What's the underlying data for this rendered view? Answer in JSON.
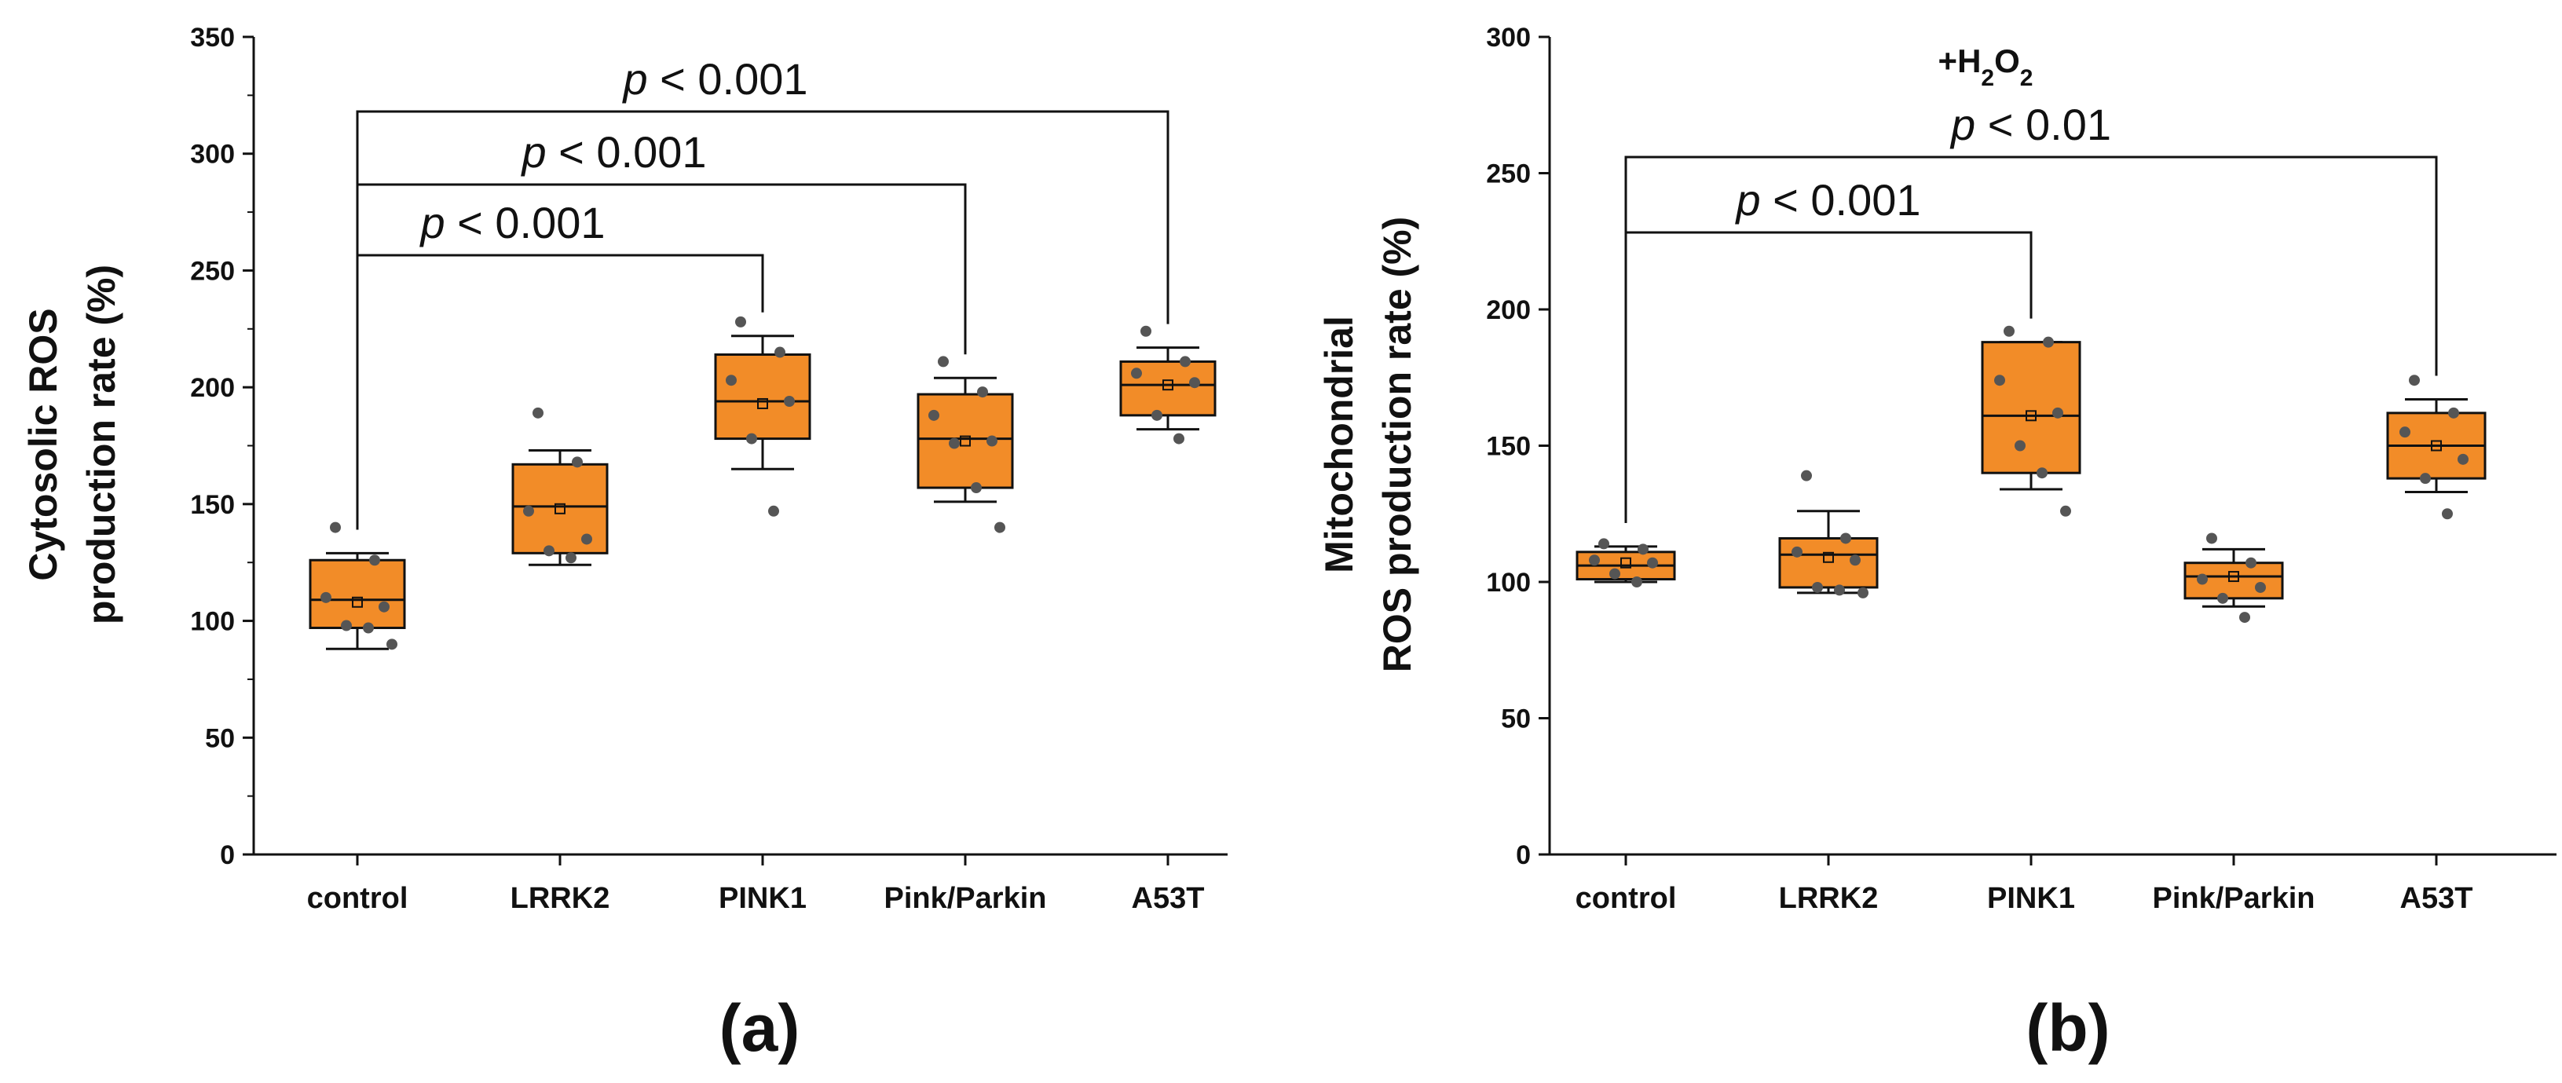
{
  "colors": {
    "box_fill": "#F28C28",
    "stroke": "#111111",
    "point": "#555555"
  },
  "chart_data": [
    {
      "type": "box",
      "panel_label": "(a)",
      "ylabel_line1": "Cytosolic ROS",
      "ylabel_line2": "production rate (%)",
      "ylim": [
        0,
        350
      ],
      "yticks": [
        0,
        50,
        100,
        150,
        200,
        250,
        300,
        350
      ],
      "categories": [
        "control",
        "LRRK2",
        "PINK1",
        "Pink/Parkin",
        "A53T"
      ],
      "boxes": [
        {
          "q1": 97,
          "median": 109,
          "q3": 126,
          "mean": 108,
          "whisker_low": 88,
          "whisker_high": 129,
          "points": [
            140,
            126,
            110,
            106,
            98,
            97,
            90
          ]
        },
        {
          "q1": 129,
          "median": 149,
          "q3": 167,
          "mean": 148,
          "whisker_low": 124,
          "whisker_high": 173,
          "points": [
            189,
            168,
            147,
            135,
            130,
            127
          ]
        },
        {
          "q1": 178,
          "median": 194,
          "q3": 214,
          "mean": 193,
          "whisker_low": 165,
          "whisker_high": 222,
          "points": [
            228,
            215,
            203,
            194,
            178,
            147
          ]
        },
        {
          "q1": 157,
          "median": 178,
          "q3": 197,
          "mean": 177,
          "whisker_low": 151,
          "whisker_high": 204,
          "points": [
            211,
            198,
            188,
            177,
            176,
            157,
            140
          ]
        },
        {
          "q1": 188,
          "median": 201,
          "q3": 211,
          "mean": 201,
          "whisker_low": 182,
          "whisker_high": 217,
          "points": [
            224,
            211,
            206,
            202,
            188,
            178
          ]
        }
      ],
      "brackets": [
        {
          "from": 0,
          "to": 2,
          "label": "p < 0.001"
        },
        {
          "from": 0,
          "to": 3,
          "label": "p < 0.001"
        },
        {
          "from": 0,
          "to": 4,
          "label": "p < 0.001"
        }
      ]
    },
    {
      "type": "box",
      "panel_label": "(b)",
      "ylabel_line1": "Mitochondrial",
      "ylabel_line2": "ROS production rate (%)",
      "condition": "+H2O2",
      "ylim": [
        0,
        300
      ],
      "yticks": [
        0,
        50,
        100,
        150,
        200,
        250,
        300
      ],
      "categories": [
        "control",
        "LRRK2",
        "PINK1",
        "Pink/Parkin",
        "A53T"
      ],
      "boxes": [
        {
          "q1": 101,
          "median": 106,
          "q3": 111,
          "mean": 107,
          "whisker_low": 100,
          "whisker_high": 113,
          "points": [
            114,
            112,
            108,
            107,
            103,
            100
          ]
        },
        {
          "q1": 98,
          "median": 110,
          "q3": 116,
          "mean": 109,
          "whisker_low": 96,
          "whisker_high": 126,
          "points": [
            139,
            116,
            111,
            108,
            98,
            97,
            96
          ]
        },
        {
          "q1": 140,
          "median": 161,
          "q3": 188,
          "mean": 161,
          "whisker_low": 134,
          "whisker_high": 188,
          "points": [
            192,
            188,
            174,
            162,
            150,
            140,
            126
          ]
        },
        {
          "q1": 94,
          "median": 102,
          "q3": 107,
          "mean": 102,
          "whisker_low": 91,
          "whisker_high": 112,
          "points": [
            116,
            107,
            101,
            98,
            94,
            87
          ]
        },
        {
          "q1": 138,
          "median": 150,
          "q3": 162,
          "mean": 150,
          "whisker_low": 133,
          "whisker_high": 167,
          "points": [
            174,
            162,
            155,
            145,
            138,
            125
          ]
        }
      ],
      "brackets": [
        {
          "from": 0,
          "to": 2,
          "label": "p < 0.001"
        },
        {
          "from": 0,
          "to": 4,
          "label": "p < 0.01"
        }
      ]
    }
  ]
}
